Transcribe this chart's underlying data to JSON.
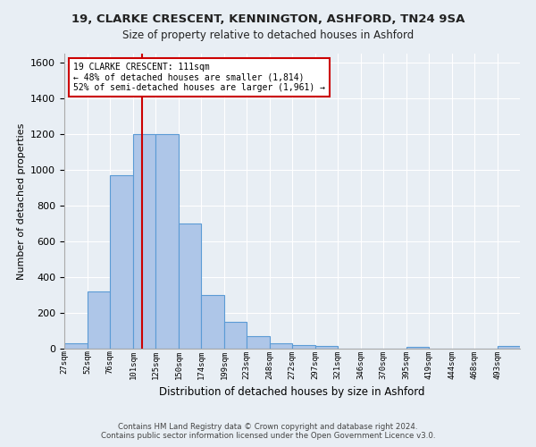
{
  "title": "19, CLARKE CRESCENT, KENNINGTON, ASHFORD, TN24 9SA",
  "subtitle": "Size of property relative to detached houses in Ashford",
  "xlabel": "Distribution of detached houses by size in Ashford",
  "ylabel": "Number of detached properties",
  "footer_line1": "Contains HM Land Registry data © Crown copyright and database right 2024.",
  "footer_line2": "Contains public sector information licensed under the Open Government Licence v3.0.",
  "annotation_line1": "19 CLARKE CRESCENT: 111sqm",
  "annotation_line2": "← 48% of detached houses are smaller (1,814)",
  "annotation_line3": "52% of semi-detached houses are larger (1,961) →",
  "bar_color": "#aec6e8",
  "bar_edge_color": "#5b9bd5",
  "vline_color": "#cc0000",
  "background_color": "#e8eef4",
  "grid_color": "#ffffff",
  "bins": [
    27,
    52,
    76,
    101,
    125,
    150,
    174,
    199,
    223,
    248,
    272,
    297,
    321,
    346,
    370,
    395,
    419,
    444,
    468,
    493,
    517
  ],
  "counts": [
    30,
    320,
    970,
    1200,
    1200,
    700,
    300,
    150,
    70,
    30,
    20,
    15,
    0,
    0,
    0,
    10,
    0,
    0,
    0,
    15
  ],
  "property_size": 111,
  "ylim": [
    0,
    1650
  ],
  "yticks": [
    0,
    200,
    400,
    600,
    800,
    1000,
    1200,
    1400,
    1600
  ]
}
